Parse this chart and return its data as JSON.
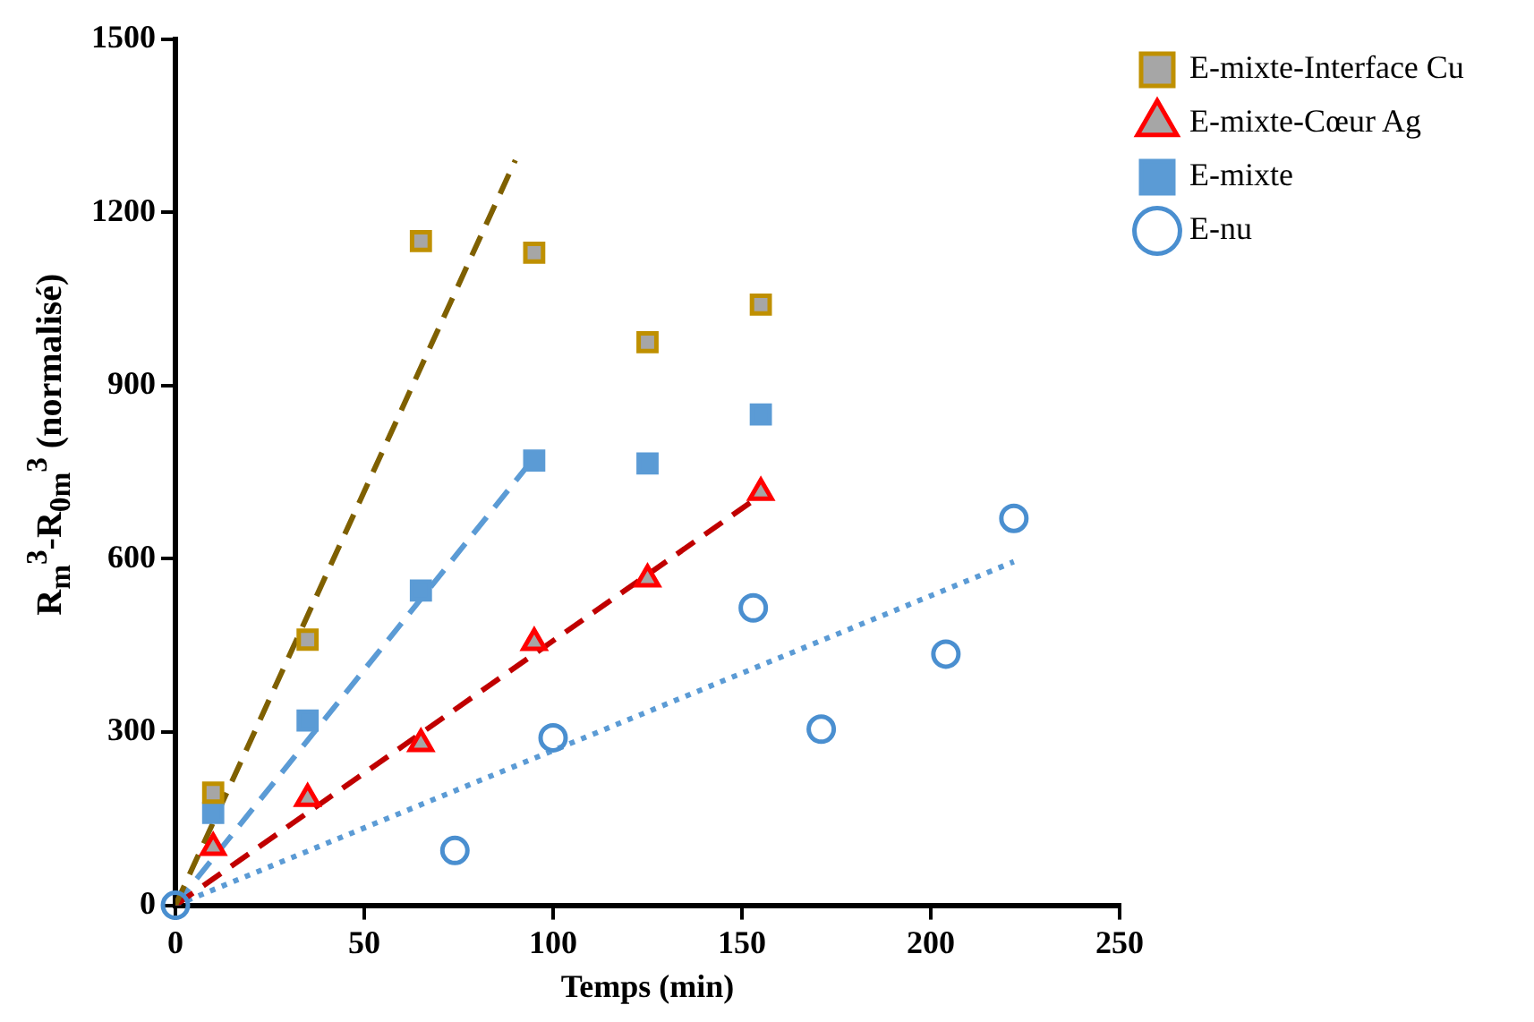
{
  "chart_data": {
    "type": "scatter",
    "xlabel": "Temps (min)",
    "ylabel": "R$_{m}$$^{3}$-R$_{0m}$$^{3}$ (normalisé)",
    "xlim": [
      0,
      250
    ],
    "xticks": [
      0,
      50,
      100,
      150,
      200,
      250
    ],
    "ylim": [
      0,
      1500
    ],
    "yticks": [
      0,
      300,
      600,
      900,
      1200,
      1500
    ],
    "grid": false,
    "legend": "top right",
    "series": [
      {
        "name": "E-mixte-Interface Cu",
        "type": "scatter",
        "marker": "square",
        "color": "#bf9000",
        "x": [
          10,
          35,
          65,
          95,
          125,
          155
        ],
        "values": [
          195,
          460,
          1150,
          1130,
          975,
          1040
        ]
      },
      {
        "name": "E-mixte-Cœur Ag",
        "type": "scatter",
        "marker": "triangle",
        "color": "#ff0000",
        "x": [
          10,
          35,
          65,
          95,
          125,
          155
        ],
        "values": [
          100,
          185,
          280,
          455,
          565,
          715
        ]
      },
      {
        "name": "E-mixte",
        "type": "scatter",
        "marker": "square",
        "color": "#5b9bd5",
        "x": [
          10,
          35,
          65,
          95,
          125,
          155
        ],
        "values": [
          160,
          320,
          545,
          770,
          765,
          850
        ]
      },
      {
        "name": "E-nu",
        "type": "scatter",
        "marker": "circle",
        "color": "#4a8fd0",
        "x": [
          0,
          74,
          100,
          153,
          171,
          204,
          222
        ],
        "values": [
          0,
          95,
          290,
          515,
          305,
          435,
          670
        ]
      },
      {
        "type": "line",
        "line_style": "dashed",
        "color": "#7f6000",
        "x": [
          0,
          90
        ],
        "values": [
          0,
          1290
        ]
      },
      {
        "type": "line",
        "line_style": "dashed",
        "color": "#c00000",
        "x": [
          0,
          155
        ],
        "values": [
          0,
          710
        ]
      },
      {
        "type": "line",
        "line_style": "dashed",
        "color": "#5b9bd5",
        "x": [
          0,
          95
        ],
        "values": [
          0,
          775
        ]
      },
      {
        "type": "line",
        "line_style": "dotted",
        "color": "#5b9bd5",
        "x": [
          0,
          222
        ],
        "values": [
          0,
          595
        ]
      }
    ]
  }
}
